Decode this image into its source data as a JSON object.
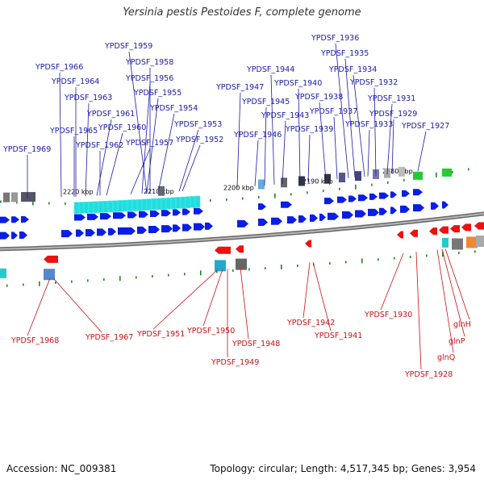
{
  "title": "Yersinia pestis Pestoides F, complete genome",
  "footer": {
    "accession": "Accession: NC_009381",
    "summary": "Topology: circular; Length: 4,517,345 bp; Genes: 3,954"
  },
  "colors": {
    "plus_label": "#1a1aa8",
    "minus_label": "#cc1111",
    "plus_gene": "#0a1ee8",
    "minus_gene": "#ee1111",
    "cyan_gene": "#22dddd",
    "tick": "#1a8a1a",
    "backbone": "#888888"
  },
  "scale_ticks": [
    "2220 kbp",
    "2210 kbp",
    "2200 kbp",
    "2190 kbp",
    "2180 kbp"
  ],
  "plus_labels": [
    "YPDSF_1969",
    "YPDSF_1966",
    "YPDSF_1965",
    "YPDSF_1964",
    "YPDSF_1963",
    "YPDSF_1962",
    "YPDSF_1961",
    "YPDSF_1960",
    "YPDSF_1959",
    "YPDSF_1958",
    "YPDSF_1957",
    "YPDSF_1956",
    "YPDSF_1955",
    "YPDSF_1954",
    "YPDSF_1953",
    "YPDSF_1952",
    "YPDSF_1947",
    "YPDSF_1946",
    "YPDSF_1945",
    "YPDSF_1944",
    "YPDSF_1943",
    "YPDSF_1940",
    "YPDSF_1939",
    "YPDSF_1938",
    "YPDSF_1937",
    "YPDSF_1936",
    "YPDSF_1935",
    "YPDSF_1934",
    "YPDSF_1933",
    "YPDSF_1932",
    "YPDSF_1931",
    "YPDSF_1929",
    "YPDSF_1927"
  ],
  "minus_labels": [
    "YPDSF_1968",
    "YPDSF_1967",
    "YPDSF_1951",
    "YPDSF_1950",
    "YPDSF_1949",
    "YPDSF_1948",
    "YPDSF_1942",
    "YPDSF_1941",
    "YPDSF_1930",
    "YPDSF_1928",
    "glnH",
    "glnP",
    "glnQ"
  ]
}
